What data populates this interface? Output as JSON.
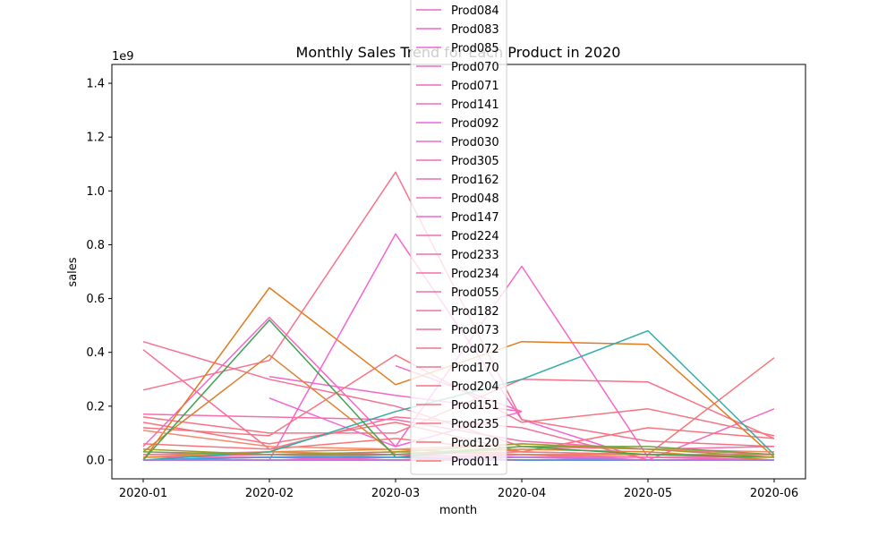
{
  "chart_data": {
    "type": "line",
    "title": "Monthly Sales Trend for Each Product in 2020",
    "xlabel": "month",
    "ylabel": "sales",
    "y_scale_label": "1e9",
    "x": [
      "2020-01",
      "2020-02",
      "2020-03",
      "2020-04",
      "2020-05",
      "2020-06"
    ],
    "ylim": [
      -0.07,
      1.47
    ],
    "y_scale": 1000000000,
    "yticks": [
      "0.0",
      "0.2",
      "0.4",
      "0.6",
      "0.8",
      "1.0",
      "1.2",
      "1.4"
    ],
    "grid": false,
    "legend_position": "top-center",
    "series": [
      {
        "name": "Prod084",
        "color": "#f565cc",
        "values": [
          0.05,
          0.53,
          0.05,
          0.72,
          0.01,
          0.0
        ]
      },
      {
        "name": "Prod083",
        "color": "#f564d0",
        "values": [
          0.0,
          0.0,
          0.84,
          0.15,
          0.0,
          0.0
        ]
      },
      {
        "name": "Prod085",
        "color": "#f562d6",
        "values": [
          null,
          0.23,
          0.05,
          0.18,
          null,
          null
        ]
      },
      {
        "name": "Prod070",
        "color": "#f566c9",
        "values": [
          null,
          0.31,
          0.24,
          0.18,
          null,
          null
        ]
      },
      {
        "name": "Prod071",
        "color": "#f567c6",
        "values": [
          null,
          null,
          0.35,
          0.18,
          null,
          null
        ]
      },
      {
        "name": "Prod141",
        "color": "#f568c3",
        "values": [
          0.0,
          0.01,
          0.0,
          0.02,
          0.0,
          0.19
        ]
      },
      {
        "name": "Prod092",
        "color": "#f563d3",
        "values": [
          0.0,
          0.0,
          0.01,
          0.0,
          0.0,
          0.0
        ]
      },
      {
        "name": "Prod030",
        "color": "#f569bf",
        "values": [
          0.01,
          0.01,
          0.02,
          0.01,
          0.01,
          0.0
        ]
      },
      {
        "name": "Prod305",
        "color": "#f66ab9",
        "values": [
          0.0,
          0.0,
          0.0,
          0.0,
          0.0,
          0.0
        ]
      },
      {
        "name": "Prod162",
        "color": "#f66bb4",
        "values": [
          0.01,
          0.02,
          0.01,
          0.02,
          0.01,
          0.01
        ]
      },
      {
        "name": "Prod048",
        "color": "#f56ac0",
        "values": [
          0.0,
          0.01,
          0.0,
          0.01,
          0.0,
          0.0
        ]
      },
      {
        "name": "Prod147",
        "color": "#f564cf",
        "values": [
          0.0,
          0.0,
          0.0,
          0.0,
          0.0,
          0.0
        ]
      },
      {
        "name": "Prod224",
        "color": "#f66cae",
        "values": [
          0.17,
          0.16,
          0.15,
          0.07,
          0.04,
          0.05
        ]
      },
      {
        "name": "Prod233",
        "color": "#f66da9",
        "values": [
          0.0,
          0.0,
          0.0,
          0.0,
          0.0,
          0.0
        ]
      },
      {
        "name": "Prod234",
        "color": "#f66ea4",
        "values": [
          0.0,
          0.0,
          0.0,
          0.0,
          0.0,
          0.0
        ]
      },
      {
        "name": "Prod055",
        "color": "#f66fa0",
        "values": [
          0.02,
          0.03,
          0.02,
          0.03,
          0.02,
          0.02
        ]
      },
      {
        "name": "Prod182",
        "color": "#f6709b",
        "values": [
          0.0,
          0.0,
          0.0,
          0.0,
          0.0,
          0.0
        ]
      },
      {
        "name": "Prod073",
        "color": "#f67096",
        "values": [
          0.41,
          0.04,
          0.16,
          0.12,
          0.0,
          0.0
        ]
      },
      {
        "name": "Prod072",
        "color": "#f67191",
        "values": [
          0.44,
          0.3,
          0.2,
          0.05,
          0.04,
          0.02
        ]
      },
      {
        "name": "Prod170",
        "color": "#f6728c",
        "values": [
          0.26,
          0.37,
          1.07,
          0.15,
          0.07,
          0.05
        ]
      },
      {
        "name": "Prod204",
        "color": "#f67287",
        "values": [
          0.16,
          0.1,
          0.1,
          0.3,
          0.29,
          0.08
        ]
      },
      {
        "name": "Prod151",
        "color": "#f77382",
        "values": [
          0.12,
          0.09,
          0.39,
          0.14,
          0.19,
          0.09
        ]
      },
      {
        "name": "Prod235",
        "color": "#f7747d",
        "values": [
          0.14,
          0.06,
          0.14,
          0.03,
          0.12,
          0.08
        ]
      },
      {
        "name": "Prod120",
        "color": "#f77577",
        "values": [
          0.06,
          0.04,
          0.08,
          0.03,
          0.02,
          0.38
        ]
      },
      {
        "name": "Prod011",
        "color": "#f77671",
        "values": [
          0.02,
          0.02,
          0.03,
          0.02,
          0.02,
          0.02
        ]
      },
      {
        "name": "",
        "color": "#e07c1f",
        "values": [
          0.0,
          0.64,
          0.28,
          0.44,
          0.43,
          0.01
        ]
      },
      {
        "name": "",
        "color": "#da8235",
        "values": [
          0.03,
          0.39,
          0.02,
          0.04,
          0.03,
          0.0
        ]
      },
      {
        "name": "",
        "color": "#e5893a",
        "values": [
          0.01,
          0.03,
          0.04,
          0.02,
          0.02,
          0.01
        ]
      },
      {
        "name": "",
        "color": "#f5886b",
        "values": [
          0.11,
          0.05,
          0.04,
          0.06,
          0.04,
          0.03
        ]
      },
      {
        "name": "",
        "color": "#2fada6",
        "values": [
          0.0,
          0.03,
          0.18,
          0.3,
          0.48,
          0.02
        ]
      },
      {
        "name": "",
        "color": "#3ea14e",
        "values": [
          0.0,
          0.52,
          0.01,
          0.05,
          0.02,
          0.01
        ]
      },
      {
        "name": "",
        "color": "#6fa34a",
        "values": [
          0.03,
          0.02,
          0.02,
          0.05,
          0.05,
          0.02
        ]
      },
      {
        "name": "",
        "color": "#a39a2e",
        "values": [
          0.04,
          0.02,
          0.03,
          0.06,
          0.04,
          0.01
        ]
      },
      {
        "name": "",
        "color": "#3a9de0",
        "values": [
          0.0,
          0.01,
          0.01,
          0.0,
          0.0,
          0.0
        ]
      },
      {
        "name": "",
        "color": "#9d82e6",
        "values": [
          0.0,
          0.0,
          0.0,
          0.01,
          0.0,
          0.0
        ]
      }
    ]
  }
}
